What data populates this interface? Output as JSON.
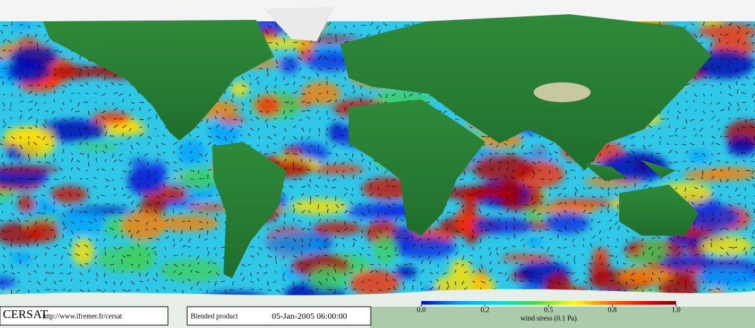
{
  "logo": "CERSAT",
  "url": "http://www.ifremer.fr/cersat",
  "product": "Blended product",
  "date": "05-Jan-2005 06:00:00",
  "colorbar": {
    "label": "wind stress (0.1 Pa)",
    "ticks": [
      {
        "value": 0,
        "label": "0.0"
      },
      0.2,
      0.5,
      0.8,
      {
        "value": 1,
        "label": "1.0"
      }
    ]
  }
}
